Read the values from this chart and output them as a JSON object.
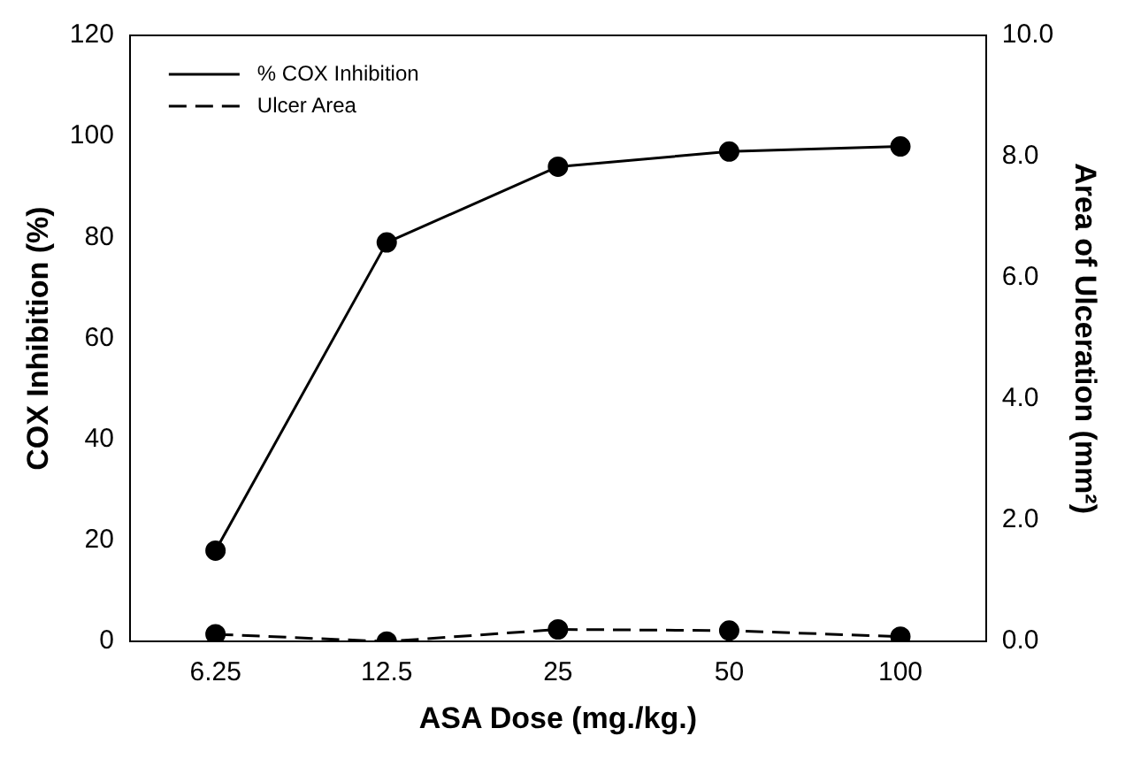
{
  "chart_data": {
    "type": "line",
    "xlabel": "ASA Dose (mg./kg.)",
    "ylabel": "COX Inhibition (%)",
    "y2label": "Area of Ulceration (mm²)",
    "categories": [
      "6.25",
      "12.5",
      "25",
      "50",
      "100"
    ],
    "series": [
      {
        "name": "% COX Inhibition",
        "color": "#000000",
        "values": [
          18,
          79,
          94,
          97,
          98
        ],
        "line_style": "solid"
      },
      {
        "name": "Ulcer Area",
        "color": "#000000",
        "values": [
          0.12,
          0,
          0.2,
          0.18,
          0.08
        ],
        "axis": "y2",
        "line_style": "dashed"
      }
    ],
    "ylim": [
      0,
      120
    ],
    "yticks": [
      0,
      20,
      40,
      60,
      80,
      100,
      120
    ],
    "y2lim": [
      0,
      10
    ],
    "y2ticks": [
      {
        "value": 0,
        "label": "0.0"
      },
      {
        "value": 2,
        "label": "2.0"
      },
      {
        "value": 4,
        "label": "4.0"
      },
      {
        "value": 6,
        "label": "6.0"
      },
      {
        "value": 8,
        "label": "8.0"
      },
      {
        "value": 10,
        "label": "10.0"
      }
    ],
    "legend": "top left",
    "marker": "circle",
    "grid": false
  }
}
